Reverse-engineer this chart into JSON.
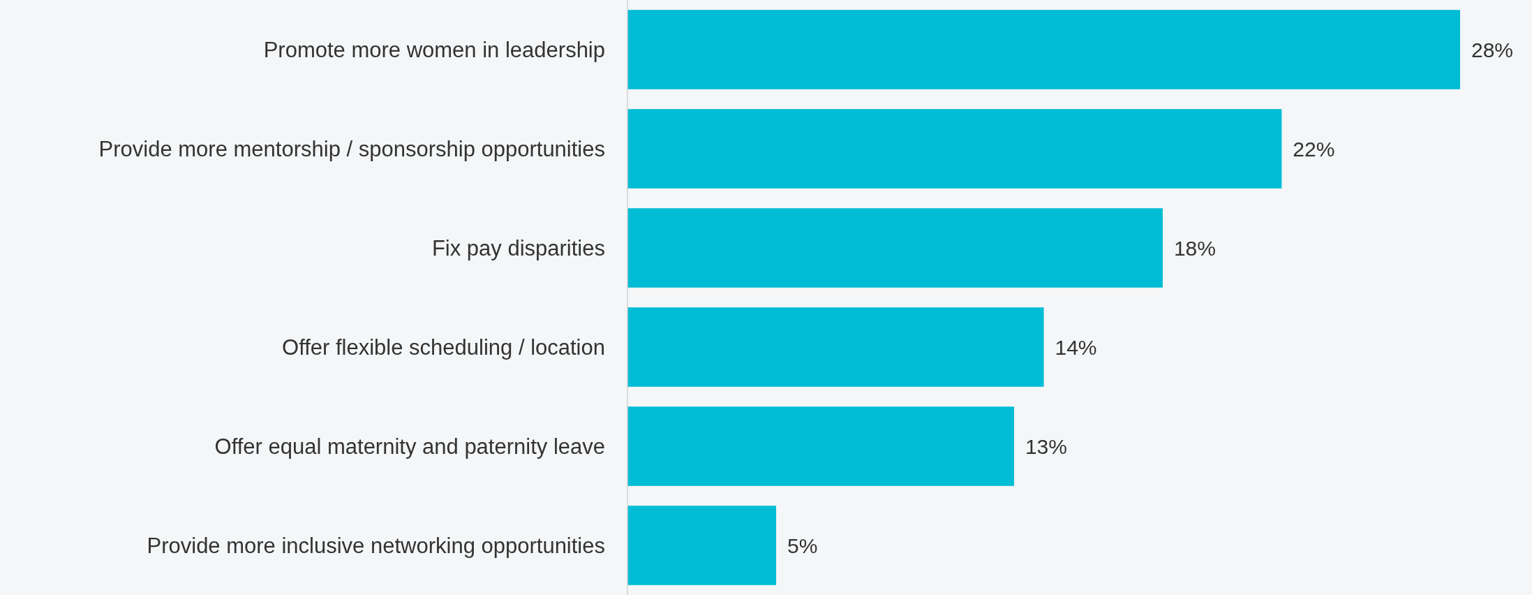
{
  "chart_data": {
    "type": "bar",
    "orientation": "horizontal",
    "categories": [
      "Promote more women in leadership",
      "Provide more mentorship / sponsorship opportunities",
      "Fix pay disparities",
      "Offer flexible scheduling / location",
      "Offer equal maternity and paternity leave",
      "Provide more inclusive networking opportunities"
    ],
    "values": [
      28,
      22,
      18,
      14,
      13,
      5
    ],
    "value_labels": [
      "28%",
      "22%",
      "18%",
      "14%",
      "13%",
      "5%"
    ],
    "color": "#00bcd4"
  }
}
